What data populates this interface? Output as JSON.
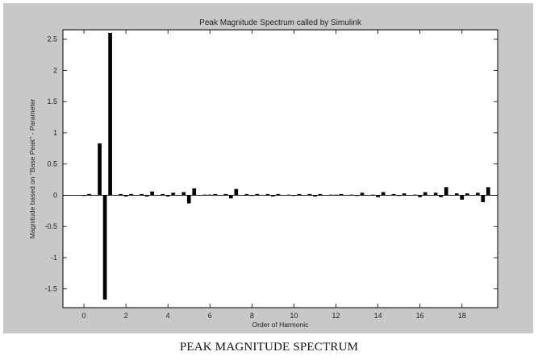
{
  "caption": "PEAK MAGNITUDE SPECTRUM",
  "colors": {
    "figure_bg": "#c8c8c8",
    "plot_bg": "#ffffff",
    "bar": "#000000",
    "axis": "#000000"
  },
  "chart_data": {
    "type": "bar",
    "title": "Peak Magnitude Spectrum called by Simulink",
    "xlabel": "Order of Harmonic",
    "ylabel": "Magnitude based on \"Base Peak\" - Parameter",
    "xlim": [
      -1,
      19.7
    ],
    "ylim": [
      -1.8,
      2.65
    ],
    "xticks": [
      0,
      2,
      4,
      6,
      8,
      10,
      12,
      14,
      16,
      18
    ],
    "yticks": [
      -1.5,
      -1,
      -0.5,
      0,
      0.5,
      1,
      1.5,
      2,
      2.5
    ],
    "grid": false,
    "legend": "none",
    "bar_width": 0.18,
    "series": [
      {
        "x": [
          0,
          0.25,
          0.75,
          1,
          1.25,
          1.75,
          2,
          2.25,
          2.75,
          3,
          3.25,
          3.75,
          4,
          4.25,
          4.75,
          5,
          5.25,
          5.75,
          6,
          6.25,
          6.75,
          7,
          7.25,
          7.75,
          8,
          8.25,
          8.75,
          9,
          9.25,
          9.75,
          10,
          10.25,
          10.75,
          11,
          11.25,
          11.75,
          12,
          12.25,
          12.75,
          13,
          13.25,
          13.75,
          14,
          14.25,
          14.75,
          15,
          15.25,
          15.75,
          16,
          16.25,
          16.75,
          17,
          17.25,
          17.75,
          18,
          18.25,
          18.75,
          19,
          19.25
        ],
        "values": [
          -0.01,
          0.02,
          0.83,
          -1.67,
          2.6,
          0.02,
          -0.02,
          0.02,
          0.02,
          -0.02,
          0.06,
          0.02,
          -0.02,
          0.04,
          0.05,
          -0.13,
          0.11,
          0.01,
          0.01,
          0.02,
          0.02,
          -0.05,
          0.1,
          0.02,
          -0.01,
          0.02,
          0.02,
          -0.02,
          0.02,
          0.01,
          -0.01,
          0.02,
          0.02,
          -0.02,
          0.02,
          0.01,
          0.01,
          0.02,
          0.01,
          -0.01,
          0.04,
          0.01,
          -0.03,
          0.05,
          0.02,
          -0.01,
          0.03,
          0.01,
          -0.03,
          0.05,
          0.04,
          -0.03,
          0.13,
          0.03,
          -0.07,
          0.03,
          0.04,
          -0.11,
          0.13
        ]
      }
    ]
  }
}
